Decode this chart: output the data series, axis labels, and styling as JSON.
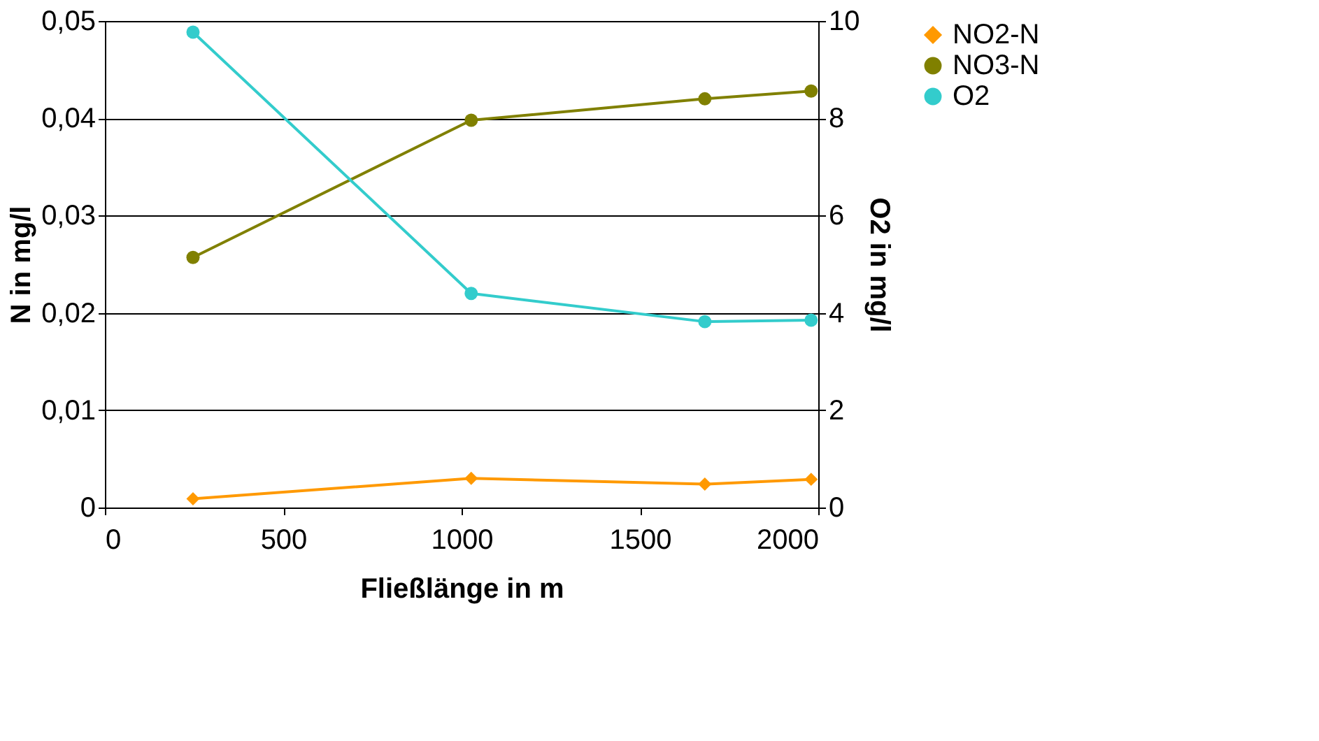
{
  "chart_data": {
    "type": "line",
    "xlabel": "Fließlänge in m",
    "ylabel": "N in mg/l",
    "y2label": "O2 in mg/l",
    "xlim": [
      0,
      2000
    ],
    "xticks": [
      0,
      500,
      1000,
      1500,
      2000
    ],
    "ylim": [
      0,
      0.05
    ],
    "yticks": [
      0,
      {
        "value": 0.01,
        "label": "0,01"
      },
      {
        "value": 0.02,
        "label": "0,02"
      },
      {
        "value": 0.03,
        "label": "0,03"
      },
      {
        "value": 0.04,
        "label": "0,04"
      },
      {
        "value": 0.05,
        "label": "0,05"
      }
    ],
    "y2lim": [
      0,
      10
    ],
    "y2ticks": [
      0,
      2,
      4,
      6,
      8,
      10
    ],
    "grid": "y",
    "legend": "right",
    "series": [
      {
        "name": "NO2-N",
        "color": "#ff9900",
        "marker": "diamond",
        "x": [
          247,
          1027,
          1682,
          1980
        ],
        "values": [
          0.0009,
          0.003,
          0.0024,
          0.0029
        ]
      },
      {
        "name": "NO3-N",
        "color": "#808000",
        "marker": "circle",
        "x": [
          247,
          1027,
          1682,
          1980
        ],
        "values": [
          0.0257,
          0.0398,
          0.042,
          0.0428
        ]
      },
      {
        "name": "O2",
        "color": "#33cccc",
        "marker": "circle",
        "axis": "y2",
        "x": [
          247,
          1027,
          1682,
          1980
        ],
        "values": [
          9.77,
          4.4,
          3.82,
          3.85
        ]
      }
    ]
  }
}
